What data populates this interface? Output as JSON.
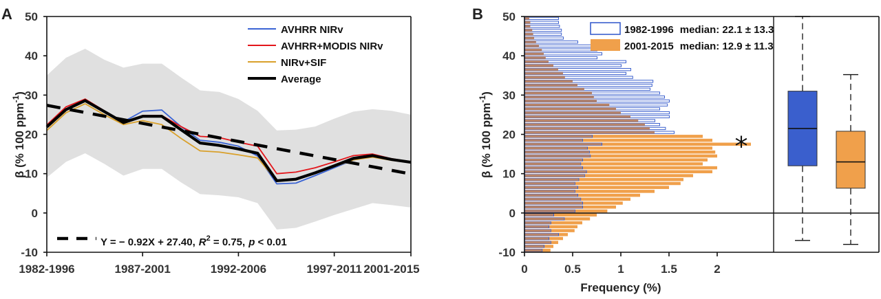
{
  "chart_data": [
    {
      "panel": "A",
      "type": "line",
      "title": "",
      "xlabel": "",
      "ylabel": "β (% 100 ppm⁻¹)",
      "ylim": [
        -10,
        50
      ],
      "yticks": [
        -10,
        0,
        10,
        20,
        30,
        40,
        50
      ],
      "xtick_labels": [
        "1982-1996",
        "1987-2001",
        "1992-2006",
        "1997-2011",
        "2001-2015"
      ],
      "xtick_index": [
        0,
        5,
        10,
        15,
        19
      ],
      "x_count": 20,
      "grid": false,
      "legend_position": "top-right",
      "series": [
        {
          "name": "AVHRR NIRv",
          "color": "#3a63d4",
          "values": [
            22.0,
            26.5,
            28.8,
            26.0,
            23.2,
            25.9,
            26.2,
            22.0,
            18.5,
            18.0,
            17.0,
            14.5,
            7.4,
            7.6,
            9.5,
            11.5,
            13.5,
            14.5,
            13.6,
            12.8
          ]
        },
        {
          "name": "AVHRR+MODIS NIRv",
          "color": "#e3151a",
          "values": [
            22.4,
            27.0,
            29.0,
            26.0,
            23.0,
            24.8,
            24.8,
            22.0,
            19.5,
            19.2,
            18.0,
            17.0,
            10.0,
            10.4,
            11.5,
            13.0,
            14.6,
            15.0,
            13.8,
            13.0
          ]
        },
        {
          "name": "NIRv+SIF",
          "color": "#d9a02a",
          "values": [
            21.0,
            25.5,
            27.8,
            25.0,
            22.5,
            23.5,
            22.5,
            19.0,
            15.8,
            15.5,
            14.8,
            14.0,
            8.2,
            8.5,
            10.0,
            11.8,
            13.5,
            14.2,
            13.4,
            12.8
          ]
        },
        {
          "name": "Average",
          "color": "#000000",
          "values": [
            21.9,
            26.3,
            28.6,
            25.8,
            23.0,
            24.6,
            24.6,
            21.2,
            17.8,
            17.2,
            16.3,
            15.2,
            8.2,
            8.6,
            10.2,
            12.0,
            13.9,
            14.6,
            13.6,
            12.9
          ]
        }
      ],
      "shaded_band": {
        "upper": [
          35.0,
          39.5,
          41.8,
          39.0,
          37.0,
          38.0,
          38.0,
          34.5,
          31.2,
          30.8,
          29.0,
          26.0,
          21.0,
          21.2,
          22.0,
          24.0,
          25.8,
          26.4,
          26.0,
          25.0
        ],
        "lower": [
          9.0,
          13.0,
          15.2,
          12.5,
          9.5,
          11.2,
          11.2,
          7.8,
          4.8,
          4.5,
          4.0,
          2.5,
          -4.2,
          -3.8,
          -2.2,
          -0.5,
          1.0,
          2.5,
          2.0,
          1.4
        ],
        "color": "#e0e0e0"
      },
      "trend_line": {
        "slope": -0.92,
        "intercept": 27.4,
        "style": "dashed",
        "color": "#000000"
      },
      "annotation": {
        "prefix": "Y = − 0.92X + 27.40,",
        "r_label": "R",
        "r_exp": "2",
        "r_value": " = 0.75,",
        "p_label": "p",
        "p_value": " < 0.01"
      }
    },
    {
      "panel": "B",
      "type": "bar",
      "orientation": "horizontal",
      "xlabel": "Frequency (%)",
      "ylabel": "β (% 100 ppm⁻¹)",
      "ylim": [
        -10,
        50
      ],
      "xlim": [
        0,
        2.6
      ],
      "yticks": [
        -10,
        0,
        10,
        20,
        30,
        40,
        50
      ],
      "xticks": [
        0,
        0.5,
        1,
        1.5,
        2
      ],
      "xtick_labels": [
        "0",
        "0.5",
        "1",
        "1.5",
        "2"
      ],
      "bin_width": 1,
      "bin_starts": [
        -10,
        -9,
        -8,
        -7,
        -6,
        -5,
        -4,
        -3,
        -2,
        -1,
        0,
        1,
        2,
        3,
        4,
        5,
        6,
        7,
        8,
        9,
        10,
        11,
        12,
        13,
        14,
        15,
        16,
        17,
        18,
        19,
        20,
        21,
        22,
        23,
        24,
        25,
        26,
        27,
        28,
        29,
        30,
        31,
        32,
        33,
        34,
        35,
        36,
        37,
        38,
        39,
        40,
        41,
        42,
        43,
        44,
        45,
        46,
        47,
        48,
        49
      ],
      "series": [
        {
          "name": "1982-1996",
          "median_label": "median: 22.1 ± 13.3",
          "style": "outline",
          "color": "#3a5fcd",
          "values": [
            0.18,
            0.2,
            0.27,
            0.25,
            0.35,
            0.27,
            0.25,
            0.27,
            0.41,
            0.3,
            0.52,
            0.6,
            0.6,
            0.58,
            0.55,
            0.52,
            0.55,
            0.52,
            0.56,
            0.62,
            0.64,
            0.6,
            0.58,
            0.6,
            0.68,
            0.67,
            0.65,
            0.8,
            0.6,
            0.7,
            1.55,
            1.46,
            1.4,
            1.35,
            1.5,
            1.5,
            1.4,
            1.48,
            1.5,
            1.45,
            1.4,
            1.3,
            1.32,
            1.33,
            1.12,
            1.05,
            1.1,
            1.0,
            1.05,
            0.75,
            0.8,
            0.75,
            0.72,
            0.55,
            0.4,
            0.38,
            0.38,
            0.36,
            0.35,
            0.35
          ]
        },
        {
          "name": "2001-2015",
          "median_label": "median: 12.9 ± 11.3",
          "style": "filled",
          "color": "#f0a04b",
          "values": [
            0.27,
            0.3,
            0.35,
            0.4,
            0.45,
            0.52,
            0.55,
            0.6,
            0.68,
            0.75,
            0.86,
            0.95,
            1.02,
            1.1,
            1.2,
            1.35,
            1.5,
            1.62,
            1.65,
            1.75,
            1.95,
            2.0,
            1.85,
            1.9,
            2.0,
            1.98,
            1.95,
            2.35,
            1.95,
            1.85,
            1.35,
            1.3,
            1.25,
            1.18,
            1.1,
            1.0,
            0.95,
            0.88,
            0.75,
            0.72,
            0.7,
            0.62,
            0.55,
            0.5,
            0.42,
            0.4,
            0.35,
            0.3,
            0.25,
            0.22,
            0.2,
            0.18,
            0.15,
            0.12,
            0.1,
            0.09,
            0.08,
            0.06,
            0.06,
            0.05
          ]
        }
      ],
      "significance_marker": "*",
      "boxplots": [
        {
          "name": "1982-1996",
          "color": "#3a5fcd",
          "whisker_low": -7,
          "q1": 12.0,
          "median": 21.5,
          "q3": 31.0,
          "whisker_high": 50.0
        },
        {
          "name": "2001-2015",
          "color": "#f0a04b",
          "whisker_low": -8,
          "q1": 6.3,
          "median": 13.0,
          "q3": 20.8,
          "whisker_high": 35.2
        }
      ]
    }
  ],
  "panels": {
    "a_label": "A",
    "b_label": "B"
  },
  "legend_a": [
    "AVHRR NIRv",
    "AVHRR+MODIS NIRv",
    "NIRv+SIF",
    "Average"
  ],
  "legend_b": [
    {
      "period": "1982-1996",
      "text": "median: 22.1 ± 13.3"
    },
    {
      "period": "2001-2015",
      "text": "median: 12.9 ± 11.3"
    }
  ],
  "axis": {
    "ylabel_a": "β (% 100 ppm",
    "ylabel_b": "β (% 100 ppm",
    "ylabel_exp": "-1",
    "ylabel_close": ")"
  }
}
